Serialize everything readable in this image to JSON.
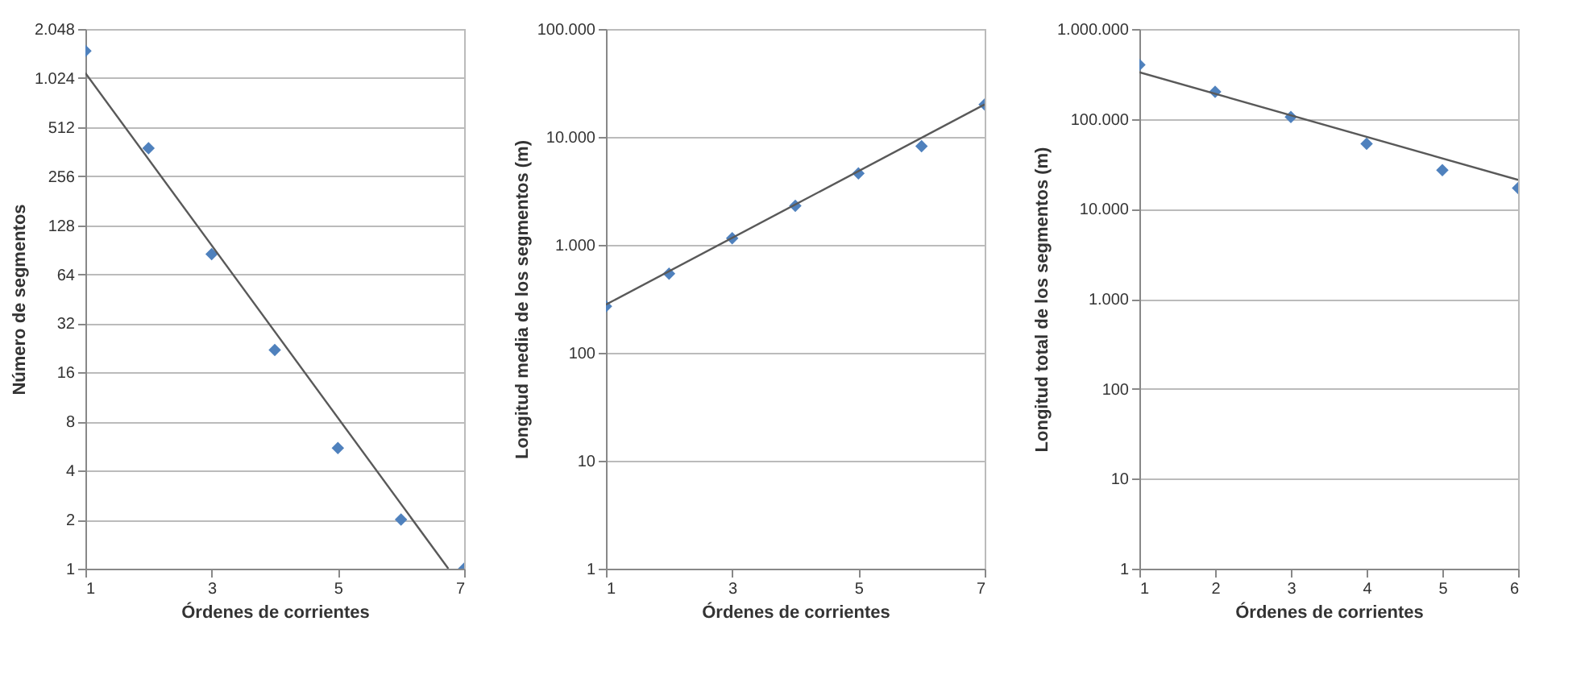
{
  "chart_data": [
    {
      "type": "scatter",
      "xlabel": "Órdenes de corrientes",
      "ylabel": "Número de segmentos",
      "x": [
        1,
        2,
        3,
        4,
        5,
        6,
        7
      ],
      "log": true,
      "grid": "y",
      "marker": "diamond",
      "xlim": [
        1,
        7
      ],
      "xticks": [
        1,
        3,
        5,
        7
      ],
      "ylim": [
        1,
        2048
      ],
      "yticks": [
        1,
        2,
        4,
        8,
        16,
        32,
        64,
        128,
        256,
        512,
        {
          "value": 1024,
          "label": "1.024"
        },
        {
          "value": 2048,
          "label": "2.048"
        }
      ],
      "series": [
        {
          "color": "#4f81bd",
          "values": [
            1500,
            380,
            85,
            22,
            5.5,
            2,
            1
          ]
        },
        {
          "type": "line",
          "color": "#595959",
          "marker": "none",
          "x": [
            1,
            6.75
          ],
          "values": [
            1100,
            1
          ]
        }
      ]
    },
    {
      "type": "scatter",
      "xlabel": "Órdenes de corrientes",
      "ylabel": "Longitud media de los segmentos (m)",
      "x": [
        1,
        2,
        3,
        4,
        5,
        6,
        7
      ],
      "log": true,
      "grid": "y",
      "marker": "diamond",
      "xlim": [
        1,
        7
      ],
      "xticks": [
        1,
        3,
        5,
        7
      ],
      "ylim": [
        1,
        100000
      ],
      "yticks": [
        1,
        10,
        100,
        {
          "value": 1000,
          "label": "1.000"
        },
        {
          "value": 10000,
          "label": "10.000"
        },
        {
          "value": 100000,
          "label": "100.000"
        }
      ],
      "series": [
        {
          "color": "#4f81bd",
          "values": [
            270,
            540,
            1150,
            2300,
            4600,
            8200,
            20000
          ]
        },
        {
          "type": "line",
          "color": "#595959",
          "marker": "none",
          "x": [
            1,
            7
          ],
          "values": [
            280,
            20000
          ]
        }
      ]
    },
    {
      "type": "scatter",
      "xlabel": "Órdenes de corrientes",
      "ylabel": "Longitud total de los segmentos (m)",
      "x": [
        1,
        2,
        3,
        4,
        5,
        6
      ],
      "log": true,
      "grid": "y",
      "marker": "diamond",
      "xlim": [
        1,
        6
      ],
      "xticks": [
        1,
        2,
        3,
        4,
        5,
        6
      ],
      "ylim": [
        1,
        1000000
      ],
      "yticks": [
        1,
        10,
        100,
        {
          "value": 1000,
          "label": "1.000"
        },
        {
          "value": 10000,
          "label": "10.000"
        },
        {
          "value": 100000,
          "label": "100.000"
        },
        {
          "value": 1000000,
          "label": "1.000.000"
        }
      ],
      "series": [
        {
          "color": "#4f81bd",
          "values": [
            400000,
            200000,
            105000,
            53000,
            27000,
            17000
          ]
        },
        {
          "type": "line",
          "color": "#595959",
          "marker": "none",
          "x": [
            1,
            6
          ],
          "values": [
            330000,
            21000
          ]
        }
      ]
    }
  ]
}
